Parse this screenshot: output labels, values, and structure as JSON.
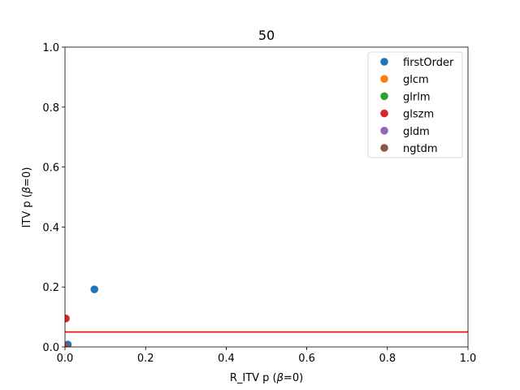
{
  "chart_data": {
    "type": "scatter",
    "title": "50",
    "xlabel_prefix": "R_ITV p (",
    "xlabel_beta": "β",
    "xlabel_suffix": "=0)",
    "ylabel_prefix": "ITV p (",
    "ylabel_beta": "β",
    "ylabel_suffix": "=0)",
    "xlim": [
      0.0,
      1.0
    ],
    "ylim": [
      0.0,
      1.0
    ],
    "xticks": [
      0.0,
      0.2,
      0.4,
      0.6,
      0.8,
      1.0
    ],
    "yticks": [
      0.0,
      0.2,
      0.4,
      0.6,
      0.8,
      1.0
    ],
    "xtick_labels": [
      "0.0",
      "0.2",
      "0.4",
      "0.6",
      "0.8",
      "1.0"
    ],
    "ytick_labels": [
      "0.0",
      "0.2",
      "0.4",
      "0.6",
      "0.8",
      "1.0"
    ],
    "grid": false,
    "legend_position": "top-right",
    "hline": {
      "y": 0.05,
      "color": "#ff0000"
    },
    "series": [
      {
        "name": "firstOrder",
        "color": "#1f77b4",
        "points": [
          [
            0.073,
            0.192
          ],
          [
            0.007,
            0.008
          ],
          [
            0.003,
            0.004
          ]
        ]
      },
      {
        "name": "glcm",
        "color": "#ff7f0e",
        "points": [
          [
            0.001,
            0.001
          ]
        ]
      },
      {
        "name": "glrlm",
        "color": "#2ca02c",
        "points": [
          [
            0.001,
            0.001
          ]
        ]
      },
      {
        "name": "glszm",
        "color": "#d62728",
        "points": [
          [
            0.002,
            0.095
          ],
          [
            0.001,
            0.002
          ]
        ]
      },
      {
        "name": "gldm",
        "color": "#9467bd",
        "points": [
          [
            0.001,
            0.001
          ]
        ]
      },
      {
        "name": "ngtdm",
        "color": "#8c564b",
        "points": [
          [
            0.002,
            0.001
          ]
        ]
      }
    ]
  }
}
